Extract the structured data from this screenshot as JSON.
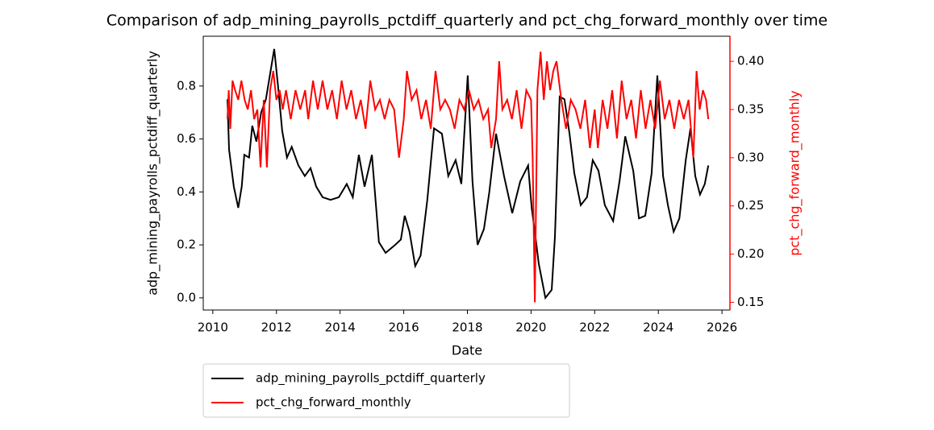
{
  "chart_data": {
    "type": "line",
    "title": "Comparison of adp_mining_payrolls_pctdiff_quarterly and pct_chg_forward_monthly over time",
    "x_label": "Date",
    "y_label": "adp_mining_payrolls_pctdiff_quarterly",
    "y2_label": "pct_chg_forward_monthly",
    "y2_label_color": "#ff0000",
    "xlim": [
      2009.7,
      2026.25
    ],
    "xticks": [
      2010,
      2012,
      2014,
      2016,
      2018,
      2020,
      2022,
      2024,
      2026
    ],
    "ylim": [
      -0.046,
      0.988
    ],
    "yticks": [
      {
        "value": 0,
        "label": "0.0"
      },
      0.2,
      0.4,
      0.6,
      0.8
    ],
    "y2lim": [
      0.142,
      0.426
    ],
    "y2ticks": [
      0.15,
      {
        "value": 0.2,
        "label": "0.20"
      },
      0.25,
      {
        "value": 0.3,
        "label": "0.30"
      },
      0.35,
      {
        "value": 0.4,
        "label": "0.40"
      }
    ],
    "legend": "below-left",
    "series": [
      {
        "name": "adp_mining_payrolls_pctdiff_quarterly",
        "color": "#000000",
        "x": [
          2010.46,
          2010.51,
          2010.66,
          2010.8,
          2010.91,
          2010.99,
          2011.14,
          2011.24,
          2011.37,
          2011.52,
          2011.67,
          2011.93,
          2012.05,
          2012.18,
          2012.33,
          2012.48,
          2012.69,
          2012.89,
          2013.07,
          2013.25,
          2013.45,
          2013.7,
          2013.96,
          2014.21,
          2014.4,
          2014.59,
          2014.77,
          2015.0,
          2015.22,
          2015.43,
          2015.73,
          2015.91,
          2016.03,
          2016.18,
          2016.36,
          2016.53,
          2016.74,
          2016.95,
          2017.2,
          2017.4,
          2017.63,
          2017.81,
          2018.01,
          2018.16,
          2018.32,
          2018.52,
          2018.69,
          2018.9,
          2019.15,
          2019.41,
          2019.66,
          2019.91,
          2020.02,
          2020.14,
          2020.24,
          2020.45,
          2020.65,
          2020.75,
          2020.9,
          2021.05,
          2021.21,
          2021.36,
          2021.56,
          2021.76,
          2021.94,
          2022.12,
          2022.32,
          2022.58,
          2022.78,
          2022.96,
          2023.21,
          2023.39,
          2023.59,
          2023.79,
          2023.97,
          2024.15,
          2024.3,
          2024.48,
          2024.66,
          2024.86,
          2025.01,
          2025.16,
          2025.31,
          2025.46,
          2025.57
        ],
        "values": [
          0.75,
          0.56,
          0.42,
          0.34,
          0.42,
          0.54,
          0.53,
          0.65,
          0.59,
          0.7,
          0.75,
          0.94,
          0.8,
          0.63,
          0.53,
          0.57,
          0.5,
          0.46,
          0.49,
          0.42,
          0.38,
          0.37,
          0.38,
          0.43,
          0.38,
          0.54,
          0.42,
          0.54,
          0.21,
          0.17,
          0.2,
          0.22,
          0.31,
          0.25,
          0.12,
          0.16,
          0.37,
          0.64,
          0.62,
          0.46,
          0.52,
          0.43,
          0.84,
          0.44,
          0.2,
          0.26,
          0.4,
          0.62,
          0.46,
          0.32,
          0.44,
          0.5,
          0.34,
          0.23,
          0.13,
          0.0,
          0.03,
          0.23,
          0.76,
          0.75,
          0.62,
          0.47,
          0.35,
          0.38,
          0.52,
          0.48,
          0.35,
          0.29,
          0.44,
          0.61,
          0.48,
          0.3,
          0.31,
          0.47,
          0.84,
          0.46,
          0.35,
          0.25,
          0.3,
          0.52,
          0.64,
          0.46,
          0.39,
          0.43,
          0.5
        ]
      },
      {
        "name": "pct_chg_forward_monthly",
        "color": "#ff0000",
        "axis": "y2",
        "x": [
          2010.46,
          2010.5,
          2010.55,
          2010.62,
          2010.7,
          2010.8,
          2010.9,
          2011.0,
          2011.1,
          2011.2,
          2011.3,
          2011.4,
          2011.5,
          2011.6,
          2011.7,
          2011.8,
          2011.9,
          2012.0,
          2012.1,
          2012.2,
          2012.3,
          2012.45,
          2012.6,
          2012.75,
          2012.9,
          2013.0,
          2013.15,
          2013.3,
          2013.45,
          2013.6,
          2013.75,
          2013.9,
          2014.05,
          2014.2,
          2014.35,
          2014.5,
          2014.65,
          2014.8,
          2014.95,
          2015.1,
          2015.25,
          2015.4,
          2015.55,
          2015.7,
          2015.85,
          2016.0,
          2016.1,
          2016.25,
          2016.4,
          2016.55,
          2016.7,
          2016.85,
          2017.0,
          2017.15,
          2017.3,
          2017.45,
          2017.6,
          2017.75,
          2017.9,
          2018.05,
          2018.2,
          2018.35,
          2018.5,
          2018.65,
          2018.75,
          2018.9,
          2019.0,
          2019.1,
          2019.25,
          2019.4,
          2019.55,
          2019.7,
          2019.85,
          2020.0,
          2020.05,
          2020.12,
          2020.2,
          2020.3,
          2020.4,
          2020.5,
          2020.6,
          2020.7,
          2020.8,
          2020.95,
          2021.1,
          2021.25,
          2021.4,
          2021.55,
          2021.7,
          2021.85,
          2022.0,
          2022.1,
          2022.25,
          2022.4,
          2022.55,
          2022.7,
          2022.85,
          2023.0,
          2023.15,
          2023.3,
          2023.45,
          2023.6,
          2023.75,
          2023.9,
          2024.05,
          2024.2,
          2024.35,
          2024.5,
          2024.65,
          2024.8,
          2024.95,
          2025.1,
          2025.2,
          2025.3,
          2025.4,
          2025.5,
          2025.57
        ],
        "values": [
          0.34,
          0.37,
          0.33,
          0.38,
          0.37,
          0.36,
          0.38,
          0.36,
          0.35,
          0.37,
          0.34,
          0.35,
          0.29,
          0.36,
          0.29,
          0.37,
          0.39,
          0.36,
          0.37,
          0.35,
          0.37,
          0.34,
          0.37,
          0.35,
          0.37,
          0.34,
          0.38,
          0.35,
          0.38,
          0.35,
          0.37,
          0.34,
          0.38,
          0.35,
          0.37,
          0.34,
          0.36,
          0.33,
          0.38,
          0.35,
          0.36,
          0.34,
          0.36,
          0.35,
          0.3,
          0.34,
          0.39,
          0.36,
          0.37,
          0.34,
          0.36,
          0.33,
          0.39,
          0.35,
          0.36,
          0.35,
          0.33,
          0.36,
          0.35,
          0.37,
          0.35,
          0.36,
          0.34,
          0.35,
          0.31,
          0.34,
          0.4,
          0.35,
          0.36,
          0.34,
          0.37,
          0.33,
          0.37,
          0.36,
          0.3,
          0.15,
          0.37,
          0.41,
          0.36,
          0.4,
          0.37,
          0.39,
          0.4,
          0.36,
          0.33,
          0.36,
          0.35,
          0.33,
          0.36,
          0.31,
          0.35,
          0.31,
          0.36,
          0.33,
          0.37,
          0.32,
          0.38,
          0.34,
          0.36,
          0.32,
          0.37,
          0.33,
          0.36,
          0.33,
          0.38,
          0.34,
          0.36,
          0.33,
          0.36,
          0.34,
          0.36,
          0.3,
          0.39,
          0.35,
          0.37,
          0.36,
          0.34
        ]
      }
    ]
  }
}
